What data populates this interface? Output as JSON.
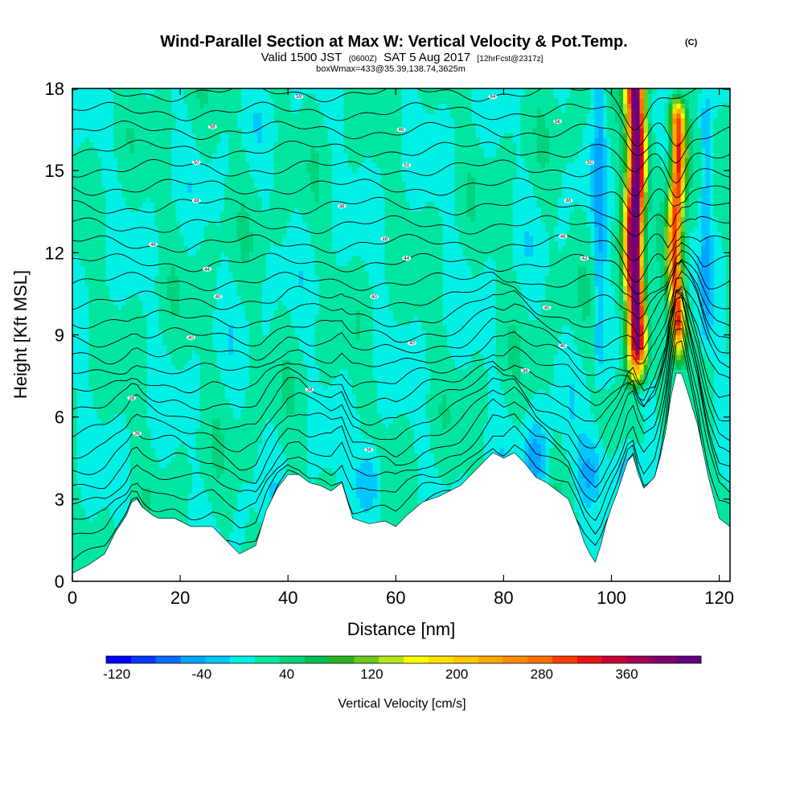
{
  "header": {
    "title": "Wind-Parallel Section at Max W: Vertical Velocity & Pot.Temp.",
    "title_tag": "(C)",
    "valid_prefix": "Valid 1500 JST",
    "valid_zulu": "(0600Z)",
    "valid_date": "SAT 5 Aug 2017",
    "forecast_info": "[12hrFcst@2317z]",
    "box_info": "boxWmax=433@35.39,138.74,3625m"
  },
  "chart_data": {
    "type": "heatmap",
    "xlabel": "Distance [nm]",
    "ylabel": "Height [Kft MSL]",
    "xlim": [
      0,
      122
    ],
    "ylim": [
      0,
      18
    ],
    "x_ticks": [
      "0",
      "20",
      "40",
      "60",
      "80",
      "100",
      "120"
    ],
    "y_ticks": [
      "0",
      "3",
      "6",
      "9",
      "12",
      "15",
      "18"
    ],
    "colorbar": {
      "label": "Vertical Velocity [cm/s]",
      "tick_labels": [
        "-120",
        "-40",
        "40",
        "120",
        "200",
        "280",
        "360"
      ],
      "tick_values": [
        -120,
        -40,
        40,
        120,
        200,
        280,
        360
      ],
      "range": [
        -130,
        430
      ],
      "colors": [
        "#0000ff",
        "#0a37ff",
        "#006eff",
        "#00a5ff",
        "#00c8ff",
        "#00f0e6",
        "#00e6a0",
        "#00d27d",
        "#00be50",
        "#28b41e",
        "#6ec81e",
        "#b4e61e",
        "#ffff00",
        "#ffe100",
        "#ffc800",
        "#ffaa00",
        "#ff8c00",
        "#ff6e00",
        "#ff3c00",
        "#e61414",
        "#c80032",
        "#a00050",
        "#82006e",
        "#640082"
      ]
    },
    "terrain_kft": {
      "x": [
        0,
        3,
        6,
        8,
        10,
        11,
        12,
        13,
        15,
        16,
        19,
        22,
        26,
        28,
        30,
        31,
        34,
        36,
        38,
        40,
        42,
        44,
        46,
        48,
        50,
        52,
        55,
        58,
        60,
        62,
        65,
        68,
        70,
        72,
        74,
        76,
        78,
        80,
        82,
        84,
        86,
        88,
        90,
        92,
        94,
        95,
        96,
        97,
        98,
        99,
        100,
        101,
        102,
        103,
        104,
        105,
        106,
        107,
        108,
        109,
        110,
        111,
        112,
        113,
        114,
        116,
        118,
        120,
        122
      ],
      "y": [
        0.3,
        0.6,
        1.0,
        1.8,
        2.4,
        2.9,
        3.0,
        2.7,
        2.4,
        2.3,
        2.3,
        2.0,
        2.0,
        1.6,
        1.2,
        1.0,
        1.3,
        2.6,
        3.4,
        3.9,
        3.9,
        3.6,
        3.5,
        3.3,
        3.6,
        2.3,
        2.1,
        2.2,
        2.0,
        2.4,
        2.9,
        3.1,
        3.3,
        3.5,
        3.9,
        4.3,
        4.7,
        4.5,
        4.7,
        4.3,
        3.8,
        3.6,
        3.3,
        3.0,
        2.0,
        1.4,
        1.0,
        0.7,
        1.3,
        2.1,
        2.7,
        3.2,
        3.8,
        4.4,
        4.6,
        3.9,
        3.4,
        3.6,
        3.8,
        4.5,
        5.4,
        6.7,
        7.6,
        7.6,
        7.0,
        5.7,
        3.8,
        2.3,
        2.0
      ]
    },
    "theta_contours": {
      "levels": 26,
      "labels": [
        {
          "text": "59",
          "x": 42,
          "y": 17.7
        },
        {
          "text": "84",
          "x": 78,
          "y": 17.7
        },
        {
          "text": "56",
          "x": 26,
          "y": 16.6
        },
        {
          "text": "46",
          "x": 61,
          "y": 16.5
        },
        {
          "text": "56",
          "x": 90,
          "y": 16.8
        },
        {
          "text": "50",
          "x": 23,
          "y": 15.3
        },
        {
          "text": "50",
          "x": 62,
          "y": 15.2
        },
        {
          "text": "50",
          "x": 96,
          "y": 15.3
        },
        {
          "text": "48",
          "x": 23,
          "y": 13.9
        },
        {
          "text": "48",
          "x": 50,
          "y": 13.7
        },
        {
          "text": "46",
          "x": 92,
          "y": 13.9
        },
        {
          "text": "46",
          "x": 15,
          "y": 12.3
        },
        {
          "text": "46",
          "x": 58,
          "y": 12.5
        },
        {
          "text": "46",
          "x": 91,
          "y": 12.6
        },
        {
          "text": "44",
          "x": 25,
          "y": 11.4
        },
        {
          "text": "44",
          "x": 62,
          "y": 11.8
        },
        {
          "text": "42",
          "x": 95,
          "y": 11.8
        },
        {
          "text": "40",
          "x": 27,
          "y": 10.4
        },
        {
          "text": "40",
          "x": 56,
          "y": 10.4
        },
        {
          "text": "40",
          "x": 88,
          "y": 10.0
        },
        {
          "text": "40",
          "x": 22,
          "y": 8.9
        },
        {
          "text": "40",
          "x": 63,
          "y": 8.7
        },
        {
          "text": "40",
          "x": 91,
          "y": 8.6
        },
        {
          "text": "38",
          "x": 84,
          "y": 7.7
        },
        {
          "text": "38",
          "x": 11,
          "y": 6.7
        },
        {
          "text": "38",
          "x": 44,
          "y": 7.0
        },
        {
          "text": "36",
          "x": 12,
          "y": 5.4
        },
        {
          "text": "36",
          "x": 55,
          "y": 4.8
        }
      ]
    },
    "updraft_cores": [
      {
        "x": 104.5,
        "y_min": 6.8,
        "y_max": 18.5,
        "peak_w": 430,
        "half_width_nm": 2.6
      },
      {
        "x": 112,
        "y_min": 7.6,
        "y_max": 17.5,
        "peak_w": 330,
        "half_width_nm": 2.1
      }
    ]
  }
}
